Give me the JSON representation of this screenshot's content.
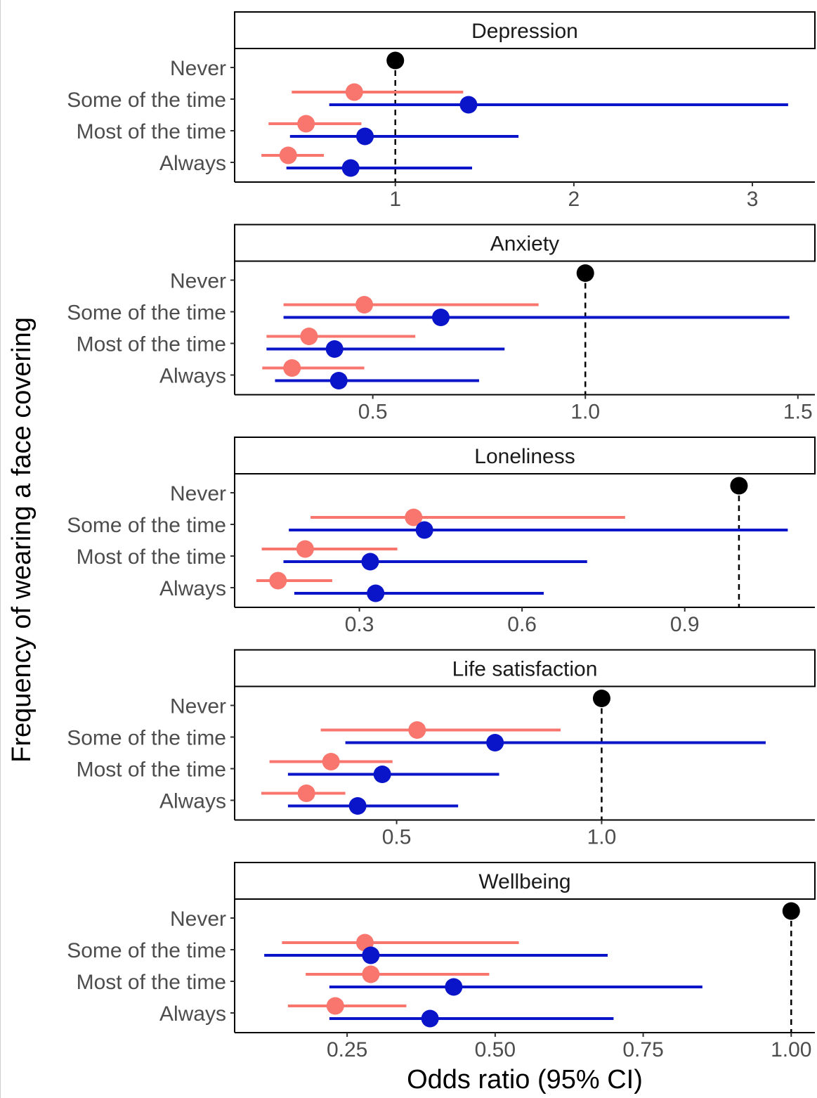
{
  "chart_data": {
    "type": "forest",
    "xlabel": "Odds ratio (95% CI)",
    "ylabel": "Frequency of wearing a face covering",
    "categories": [
      "Never",
      "Some of the time",
      "Most of the time",
      "Always"
    ],
    "colors": {
      "reference": "#000000",
      "series_a": "#f8766d",
      "series_b": "#0a14c8"
    },
    "panels": [
      {
        "title": "Depression",
        "xlim": [
          0.1,
          3.35
        ],
        "xticks": [
          1,
          2,
          3
        ],
        "xtick_labels": [
          "1",
          "2",
          "3"
        ],
        "reference": 1.0,
        "series": [
          {
            "color_key": "series_a",
            "points": [
              {
                "category": "Some of the time",
                "est": 0.77,
                "lo": 0.42,
                "hi": 1.38
              },
              {
                "category": "Most of the time",
                "est": 0.5,
                "lo": 0.29,
                "hi": 0.81
              },
              {
                "category": "Always",
                "est": 0.4,
                "lo": 0.25,
                "hi": 0.6
              }
            ]
          },
          {
            "color_key": "series_b",
            "points": [
              {
                "category": "Some of the time",
                "est": 1.41,
                "lo": 0.63,
                "hi": 3.2
              },
              {
                "category": "Most of the time",
                "est": 0.83,
                "lo": 0.41,
                "hi": 1.69
              },
              {
                "category": "Always",
                "est": 0.75,
                "lo": 0.39,
                "hi": 1.43
              }
            ]
          }
        ]
      },
      {
        "title": "Anxiety",
        "xlim": [
          0.175,
          1.54
        ],
        "xticks": [
          0.5,
          1.0,
          1.5
        ],
        "xtick_labels": [
          "0.5",
          "1.0",
          "1.5"
        ],
        "reference": 1.0,
        "series": [
          {
            "color_key": "series_a",
            "points": [
              {
                "category": "Some of the time",
                "est": 0.48,
                "lo": 0.29,
                "hi": 0.89
              },
              {
                "category": "Most of the time",
                "est": 0.35,
                "lo": 0.25,
                "hi": 0.6
              },
              {
                "category": "Always",
                "est": 0.31,
                "lo": 0.24,
                "hi": 0.48
              }
            ]
          },
          {
            "color_key": "series_b",
            "points": [
              {
                "category": "Some of the time",
                "est": 0.66,
                "lo": 0.29,
                "hi": 1.48
              },
              {
                "category": "Most of the time",
                "est": 0.41,
                "lo": 0.25,
                "hi": 0.81
              },
              {
                "category": "Always",
                "est": 0.42,
                "lo": 0.27,
                "hi": 0.75
              }
            ]
          }
        ]
      },
      {
        "title": "Loneliness",
        "xlim": [
          0.07,
          1.14
        ],
        "xticks": [
          0.3,
          0.6,
          0.9
        ],
        "xtick_labels": [
          "0.3",
          "0.6",
          "0.9"
        ],
        "reference": 1.0,
        "series": [
          {
            "color_key": "series_a",
            "points": [
              {
                "category": "Some of the time",
                "est": 0.4,
                "lo": 0.21,
                "hi": 0.79
              },
              {
                "category": "Most of the time",
                "est": 0.2,
                "lo": 0.12,
                "hi": 0.37
              },
              {
                "category": "Always",
                "est": 0.15,
                "lo": 0.11,
                "hi": 0.25
              }
            ]
          },
          {
            "color_key": "series_b",
            "points": [
              {
                "category": "Some of the time",
                "est": 0.42,
                "lo": 0.17,
                "hi": 1.09
              },
              {
                "category": "Most of the time",
                "est": 0.32,
                "lo": 0.16,
                "hi": 0.72
              },
              {
                "category": "Always",
                "est": 0.33,
                "lo": 0.18,
                "hi": 0.64
              }
            ]
          }
        ]
      },
      {
        "title": "Life satisfaction",
        "xlim": [
          0.105,
          1.52
        ],
        "xticks": [
          0.5,
          1.0
        ],
        "xtick_labels": [
          "0.5",
          "1.0"
        ],
        "reference": 1.0,
        "series": [
          {
            "color_key": "series_a",
            "points": [
              {
                "category": "Some of the time",
                "est": 0.55,
                "lo": 0.315,
                "hi": 0.9
              },
              {
                "category": "Most of the time",
                "est": 0.34,
                "lo": 0.19,
                "hi": 0.49
              },
              {
                "category": "Always",
                "est": 0.28,
                "lo": 0.17,
                "hi": 0.375
              }
            ]
          },
          {
            "color_key": "series_b",
            "points": [
              {
                "category": "Some of the time",
                "est": 0.74,
                "lo": 0.375,
                "hi": 1.4
              },
              {
                "category": "Most of the time",
                "est": 0.465,
                "lo": 0.235,
                "hi": 0.75
              },
              {
                "category": "Always",
                "est": 0.405,
                "lo": 0.235,
                "hi": 0.65
              }
            ]
          }
        ]
      },
      {
        "title": "Wellbeing",
        "xlim": [
          0.06,
          1.04
        ],
        "xticks": [
          0.25,
          0.5,
          0.75,
          1.0
        ],
        "xtick_labels": [
          "0.25",
          "0.50",
          "0.75",
          "1.00"
        ],
        "reference": 1.0,
        "series": [
          {
            "color_key": "series_a",
            "points": [
              {
                "category": "Some of the time",
                "est": 0.28,
                "lo": 0.14,
                "hi": 0.54
              },
              {
                "category": "Most of the time",
                "est": 0.29,
                "lo": 0.18,
                "hi": 0.49
              },
              {
                "category": "Always",
                "est": 0.23,
                "lo": 0.15,
                "hi": 0.35
              }
            ]
          },
          {
            "color_key": "series_b",
            "points": [
              {
                "category": "Some of the time",
                "est": 0.29,
                "lo": 0.11,
                "hi": 0.69
              },
              {
                "category": "Most of the time",
                "est": 0.43,
                "lo": 0.22,
                "hi": 0.85
              },
              {
                "category": "Always",
                "est": 0.39,
                "lo": 0.22,
                "hi": 0.7
              }
            ]
          }
        ]
      }
    ]
  }
}
